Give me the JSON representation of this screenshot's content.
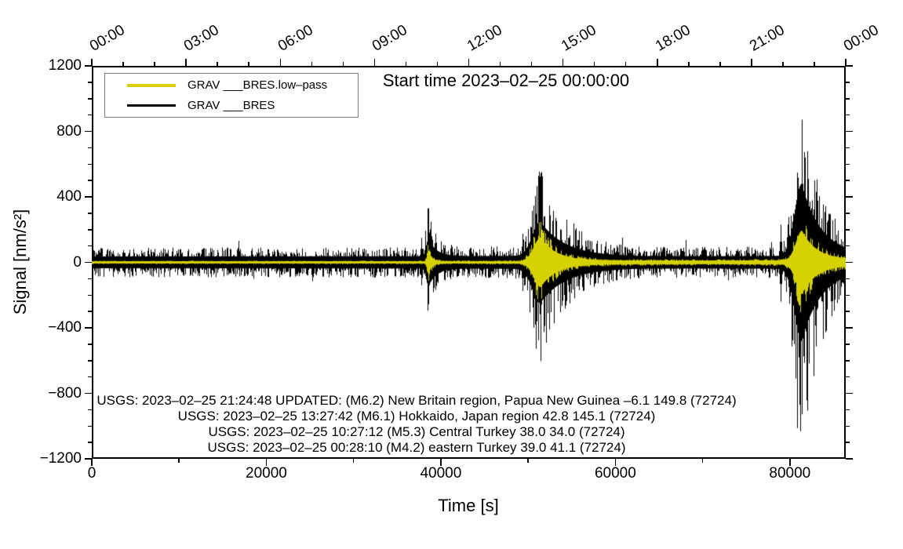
{
  "chart_data": {
    "type": "line",
    "title": "Start time 2023–02–25 00:00:00",
    "xlabel": "Time [s]",
    "ylabel": "Signal [nm/s²]",
    "xlim": [
      0,
      86400
    ],
    "ylim": [
      -1200,
      1200
    ],
    "grid": false,
    "legend_position": "top-left-inside",
    "colors": {
      "trace_raw": "#000000",
      "trace_lowpass": "#d6d100",
      "frame": "#000000",
      "background": "#ffffff"
    },
    "x_axis_bottom": {
      "major_ticks": [
        0,
        20000,
        40000,
        60000,
        80000
      ],
      "major_labels": [
        "0",
        "20000",
        "40000",
        "60000",
        "80000"
      ],
      "minor_ticks": [
        10000,
        30000,
        50000,
        70000
      ]
    },
    "x_axis_top": {
      "major_tick_seconds": [
        0,
        10800,
        21600,
        32400,
        43200,
        54000,
        64800,
        75600,
        86400
      ],
      "major_labels": [
        "00:00",
        "03:00",
        "06:00",
        "09:00",
        "12:00",
        "15:00",
        "18:00",
        "21:00",
        "00:00"
      ],
      "minor_tick_interval_seconds": 3600
    },
    "y_axis": {
      "major_ticks": [
        1200,
        800,
        400,
        0,
        -400,
        -800,
        -1200
      ],
      "major_labels": [
        "1200",
        "800",
        "400",
        "0",
        "−400",
        "−800",
        "−1200"
      ],
      "minor_tick_interval": 100
    },
    "legend": {
      "entries": [
        {
          "label": "GRAV ___BRES.low–pass",
          "color": "#d6d100"
        },
        {
          "label": "GRAV ___BRES",
          "color": "#000000"
        }
      ]
    },
    "series": [
      {
        "name": "GRAV ___BRES",
        "color": "#000000",
        "role": "broadband",
        "base_amplitude_profile": [
          [
            0,
            50
          ],
          [
            40000,
            52
          ],
          [
            52000,
            56
          ],
          [
            62000,
            50
          ],
          [
            78000,
            54
          ],
          [
            86400,
            58
          ]
        ],
        "events": [
          {
            "t_center_s": 38600,
            "rise_s": 260,
            "decay_s": 900,
            "body_amp": 150,
            "spike_max": 330,
            "spike_min": -255
          },
          {
            "t_center_s": 51400,
            "rise_s": 900,
            "decay_s": 2800,
            "body_amp": 290,
            "spike_max": 395,
            "spike_min": -470
          },
          {
            "t_center_s": 81350,
            "rise_s": 800,
            "decay_s": 2300,
            "body_amp": 610,
            "spike_max": 872,
            "spike_min": -845
          }
        ],
        "minor_spikes": [
          {
            "t_s": 37750,
            "max": 150,
            "min": -140
          },
          {
            "t_s": 49350,
            "max": 175,
            "min": -175
          },
          {
            "t_s": 78900,
            "max": 230,
            "min": -240
          },
          {
            "t_s": 79800,
            "max": 160,
            "min": -150
          }
        ]
      },
      {
        "name": "GRAV ___BRES.low–pass",
        "color": "#d6d100",
        "role": "low-pass",
        "base_amplitude_profile": [
          [
            0,
            10
          ],
          [
            36000,
            11
          ],
          [
            50000,
            13
          ],
          [
            52500,
            22
          ],
          [
            70000,
            19
          ],
          [
            80500,
            22
          ],
          [
            86400,
            28
          ]
        ],
        "events": [
          {
            "t_center_s": 38600,
            "rise_s": 170,
            "decay_s": 400,
            "body_amp": 108
          },
          {
            "t_center_s": 51450,
            "rise_s": 800,
            "decay_s": 1700,
            "body_amp": 235
          },
          {
            "t_center_s": 81400,
            "rise_s": 700,
            "decay_s": 1700,
            "body_amp": 300
          }
        ]
      }
    ],
    "annotations": [
      "USGS: 2023–02–25 21:24:48 UPDATED: (M6.2) New Britain region, Papua New Guinea –6.1 149.8 (72724)",
      "USGS: 2023–02–25 13:27:42 (M6.1) Hokkaido, Japan region 42.8 145.1 (72724)",
      "USGS: 2023–02–25 10:27:12 (M5.3) Central Turkey 38.0 34.0 (72724)",
      "USGS: 2023–02–25 00:28:10 (M4.2) eastern Turkey 39.0 41.1 (72724)"
    ]
  }
}
